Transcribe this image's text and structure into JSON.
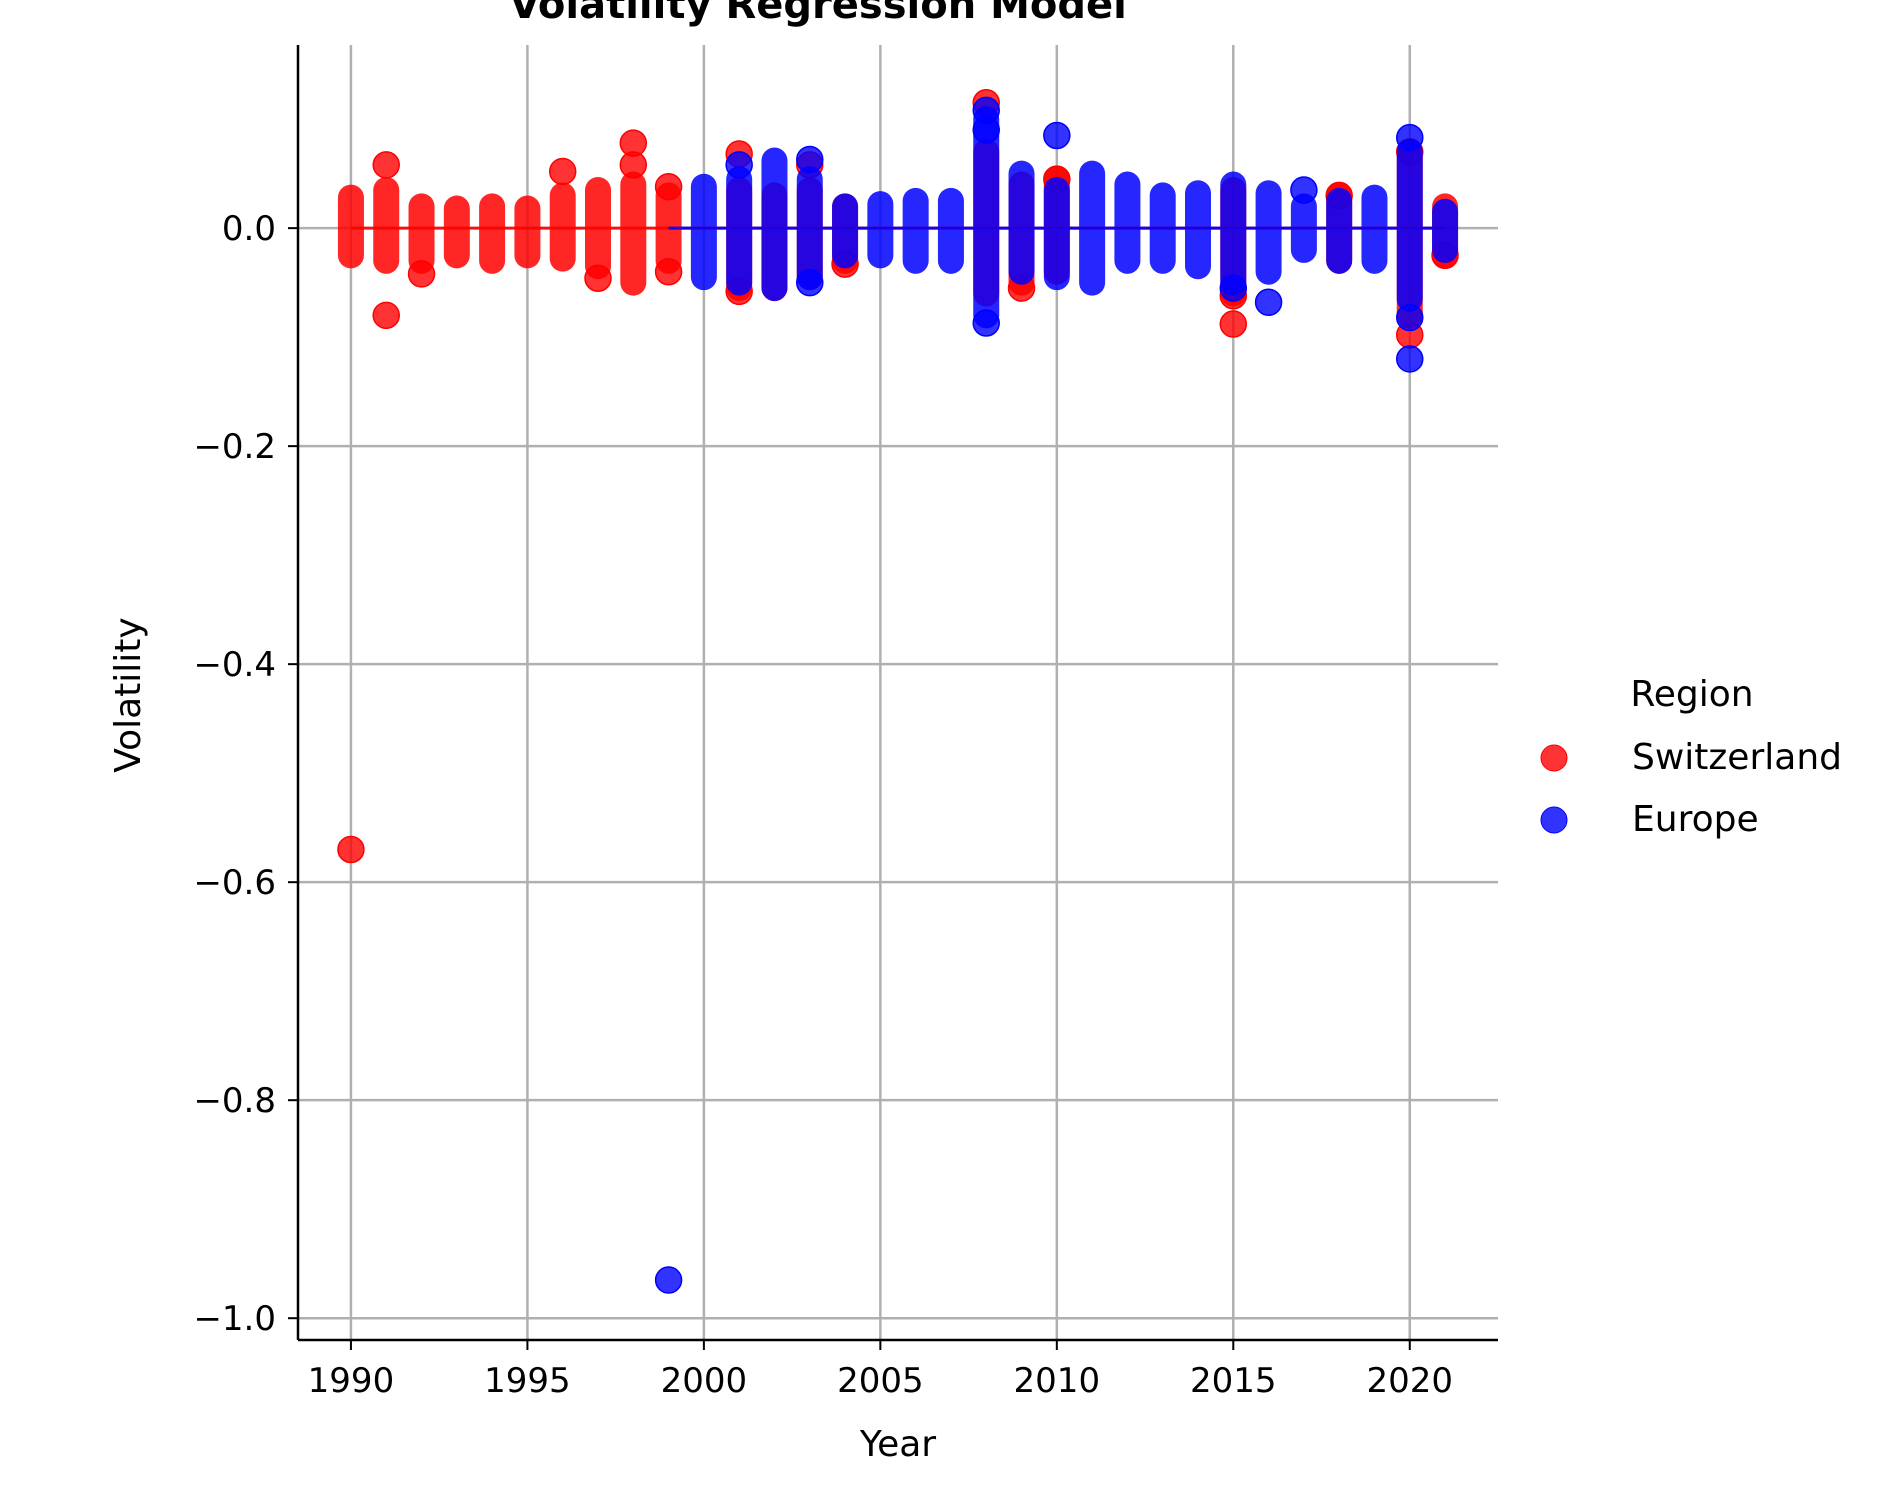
{
  "chart_data": {
    "type": "scatter",
    "title": "Volatility Regression Model",
    "xlabel": "Year",
    "ylabel": "Volatility",
    "xlim": [
      1988.5,
      2022.5
    ],
    "ylim": [
      -1.02,
      0.168
    ],
    "xticks": [
      1990,
      1995,
      2000,
      2005,
      2010,
      2015,
      2020
    ],
    "yticks": [
      0.0,
      -0.2,
      -0.4,
      -0.6,
      -0.8,
      -1.0
    ],
    "ytick_labels": [
      "0.0",
      "−0.2",
      "−0.4",
      "−0.6",
      "−0.8",
      "−1.0"
    ],
    "grid": true,
    "legend": {
      "title": "Region",
      "placement": "right"
    },
    "series": [
      {
        "name": "Switzerland",
        "color": "#ff0000",
        "ranges": [
          [
            1990,
            -0.025,
            0.028
          ],
          [
            1991,
            -0.03,
            0.035
          ],
          [
            1992,
            -0.03,
            0.02
          ],
          [
            1993,
            -0.025,
            0.018
          ],
          [
            1994,
            -0.03,
            0.02
          ],
          [
            1995,
            -0.025,
            0.018
          ],
          [
            1996,
            -0.028,
            0.03
          ],
          [
            1997,
            -0.035,
            0.035
          ],
          [
            1998,
            -0.05,
            0.04
          ],
          [
            1999,
            -0.03,
            0.03
          ],
          [
            2001,
            -0.055,
            0.035
          ],
          [
            2002,
            -0.055,
            0.03
          ],
          [
            2003,
            -0.045,
            0.035
          ],
          [
            2004,
            -0.03,
            0.02
          ],
          [
            2008,
            -0.06,
            0.07
          ],
          [
            2009,
            -0.05,
            0.04
          ],
          [
            2010,
            -0.04,
            0.045
          ],
          [
            2015,
            -0.06,
            0.035
          ],
          [
            2018,
            -0.03,
            0.03
          ],
          [
            2020,
            -0.08,
            0.07
          ],
          [
            2021,
            -0.025,
            0.02
          ]
        ],
        "points": [
          [
            1990,
            -0.57
          ],
          [
            1991,
            -0.08
          ],
          [
            1991,
            0.058
          ],
          [
            1992,
            -0.042
          ],
          [
            1996,
            0.052
          ],
          [
            1997,
            -0.046
          ],
          [
            1998,
            0.078
          ],
          [
            1998,
            0.058
          ],
          [
            1999,
            -0.04
          ],
          [
            1999,
            0.038
          ],
          [
            2001,
            0.068
          ],
          [
            2001,
            -0.058
          ],
          [
            2003,
            0.058
          ],
          [
            2004,
            -0.033
          ],
          [
            2008,
            0.115
          ],
          [
            2009,
            -0.055
          ],
          [
            2010,
            0.045
          ],
          [
            2015,
            -0.088
          ],
          [
            2015,
            -0.062
          ],
          [
            2018,
            0.03
          ],
          [
            2020,
            -0.098
          ],
          [
            2020,
            0.07
          ],
          [
            2021,
            -0.025
          ]
        ],
        "trend": {
          "x": [
            1990,
            2021
          ],
          "y": [
            0.0,
            0.0
          ]
        }
      },
      {
        "name": "Europe",
        "color": "#0000ff",
        "ranges": [
          [
            2000,
            -0.045,
            0.038
          ],
          [
            2001,
            -0.05,
            0.045
          ],
          [
            2002,
            -0.055,
            0.062
          ],
          [
            2003,
            -0.045,
            0.045
          ],
          [
            2004,
            -0.025,
            0.02
          ],
          [
            2005,
            -0.025,
            0.022
          ],
          [
            2006,
            -0.03,
            0.025
          ],
          [
            2007,
            -0.03,
            0.025
          ],
          [
            2008,
            -0.08,
            0.1
          ],
          [
            2009,
            -0.04,
            0.05
          ],
          [
            2010,
            -0.045,
            0.035
          ],
          [
            2011,
            -0.05,
            0.05
          ],
          [
            2012,
            -0.03,
            0.04
          ],
          [
            2013,
            -0.03,
            0.03
          ],
          [
            2014,
            -0.035,
            0.032
          ],
          [
            2015,
            -0.05,
            0.04
          ],
          [
            2016,
            -0.04,
            0.032
          ],
          [
            2017,
            -0.02,
            0.02
          ],
          [
            2018,
            -0.03,
            0.025
          ],
          [
            2019,
            -0.03,
            0.028
          ],
          [
            2020,
            -0.065,
            0.07
          ],
          [
            2021,
            -0.02,
            0.015
          ]
        ],
        "points": [
          [
            1999,
            -0.965
          ],
          [
            2001,
            0.058
          ],
          [
            2003,
            0.063
          ],
          [
            2003,
            -0.05
          ],
          [
            2008,
            -0.087
          ],
          [
            2008,
            0.108
          ],
          [
            2008,
            0.09
          ],
          [
            2010,
            0.085
          ],
          [
            2016,
            -0.068
          ],
          [
            2017,
            0.035
          ],
          [
            2020,
            -0.12
          ],
          [
            2020,
            -0.082
          ],
          [
            2020,
            0.083
          ],
          [
            2015,
            -0.055
          ]
        ],
        "trend": {
          "x": [
            1999,
            2021
          ],
          "y": [
            0.0,
            0.0
          ]
        }
      }
    ]
  }
}
